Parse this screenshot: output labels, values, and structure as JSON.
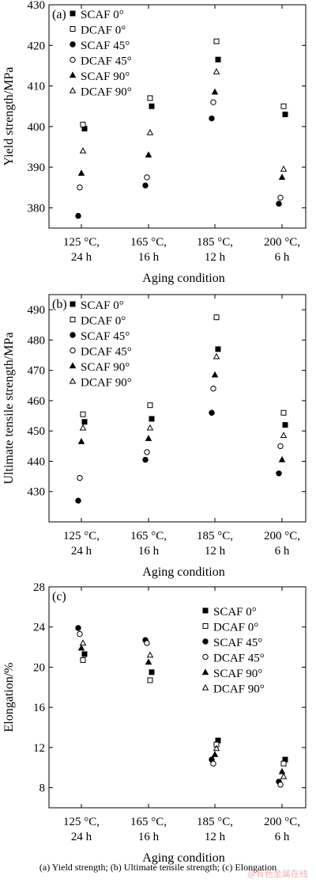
{
  "caption": "(a)  Yield  strength; (b) Ultimate tensile strength; (c) Elongation",
  "watermark": "@有色金属在线",
  "legend_names": [
    "SCAF 0°",
    "DCAF 0°",
    "SCAF 45°",
    "DCAF 45°",
    "SCAF 90°",
    "DCAF 90°"
  ],
  "chart_data": [
    {
      "type": "scatter",
      "panel_label": "(a)",
      "categories": [
        "125 °C,\n24 h",
        "165 °C,\n16 h",
        "185 °C,\n12 h",
        "200 °C,\n6 h"
      ],
      "xlabel": "Aging condition",
      "ylabel": "Yield strength/MPa",
      "ylim": [
        375,
        430
      ],
      "yticks": [
        380,
        390,
        400,
        410,
        420,
        430
      ],
      "legend": "top-left",
      "series": [
        {
          "name": "SCAF 0°",
          "marker": "square-filled",
          "values": [
            399.5,
            405,
            416.5,
            403
          ]
        },
        {
          "name": "DCAF 0°",
          "marker": "square-open",
          "values": [
            400.5,
            407,
            421,
            405
          ]
        },
        {
          "name": "SCAF 45°",
          "marker": "circle-filled",
          "values": [
            378,
            385.5,
            402,
            381
          ]
        },
        {
          "name": "DCAF 45°",
          "marker": "circle-open",
          "values": [
            385,
            387.5,
            406,
            382.5
          ]
        },
        {
          "name": "SCAF 90°",
          "marker": "triangle-filled",
          "values": [
            388.5,
            393,
            408.5,
            387.5
          ]
        },
        {
          "name": "DCAF 90°",
          "marker": "triangle-open",
          "values": [
            394,
            398.5,
            413.5,
            389.5
          ]
        }
      ]
    },
    {
      "type": "scatter",
      "panel_label": "(b)",
      "categories": [
        "125 °C,\n24 h",
        "165 °C,\n16 h",
        "185 °C,\n12 h",
        "200 °C,\n6 h"
      ],
      "xlabel": "Aging condition",
      "ylabel": "Ultimate tensile strength/MPa",
      "ylim": [
        420,
        495
      ],
      "yticks": [
        430,
        440,
        450,
        460,
        470,
        480,
        490
      ],
      "legend": "top-left",
      "series": [
        {
          "name": "SCAF 0°",
          "marker": "square-filled",
          "values": [
            453,
            454,
            477,
            452
          ]
        },
        {
          "name": "DCAF 0°",
          "marker": "square-open",
          "values": [
            455.5,
            458.5,
            487.5,
            456
          ]
        },
        {
          "name": "SCAF 45°",
          "marker": "circle-filled",
          "values": [
            427,
            440.5,
            456,
            436
          ]
        },
        {
          "name": "DCAF 45°",
          "marker": "circle-open",
          "values": [
            434.5,
            443,
            464,
            445
          ]
        },
        {
          "name": "SCAF 90°",
          "marker": "triangle-filled",
          "values": [
            446.5,
            447.5,
            468.5,
            440.5
          ]
        },
        {
          "name": "DCAF 90°",
          "marker": "triangle-open",
          "values": [
            451,
            451,
            474.5,
            448.5
          ]
        }
      ]
    },
    {
      "type": "scatter",
      "panel_label": "(c)",
      "categories": [
        "125 °C,\n24 h",
        "165 °C,\n16 h",
        "185 °C,\n12 h",
        "200 °C,\n6 h"
      ],
      "xlabel": "Aging condition",
      "ylabel": "Elongation/%",
      "ylim": [
        6,
        28
      ],
      "yticks": [
        8,
        12,
        16,
        20,
        24,
        28
      ],
      "legend": "top-right",
      "series": [
        {
          "name": "SCAF 0°",
          "marker": "square-filled",
          "values": [
            21.3,
            19.5,
            12.7,
            10.8
          ]
        },
        {
          "name": "DCAF 0°",
          "marker": "square-open",
          "values": [
            20.7,
            18.7,
            12.3,
            10.4
          ]
        },
        {
          "name": "SCAF 45°",
          "marker": "circle-filled",
          "values": [
            23.9,
            22.7,
            10.8,
            8.6
          ]
        },
        {
          "name": "DCAF 45°",
          "marker": "circle-open",
          "values": [
            23.3,
            22.4,
            10.4,
            8.3
          ]
        },
        {
          "name": "SCAF 90°",
          "marker": "triangle-filled",
          "values": [
            21.9,
            20.5,
            11.3,
            9.6
          ]
        },
        {
          "name": "DCAF 90°",
          "marker": "triangle-open",
          "values": [
            22.4,
            21.2,
            11.9,
            9.1
          ]
        }
      ]
    }
  ]
}
